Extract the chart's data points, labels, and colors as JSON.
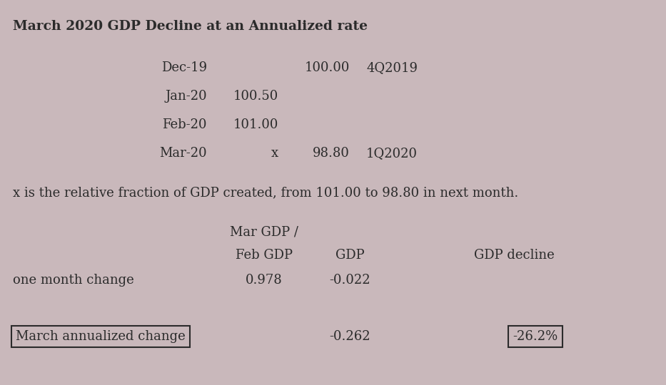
{
  "title": "March 2020 GDP Decline at an Annualized rate",
  "background_color": "#c9b8bb",
  "text_color": "#2b2b2b",
  "font_family": "DejaVu Serif",
  "title_fontsize": 13.5,
  "body_fontsize": 13,
  "rows": [
    {
      "label": "Dec-19",
      "value": "",
      "gdp": "100.00",
      "quarter": "4Q2019"
    },
    {
      "label": "Jan-20",
      "value": "100.50",
      "gdp": "",
      "quarter": ""
    },
    {
      "label": "Feb-20",
      "value": "101.00",
      "gdp": "",
      "quarter": ""
    },
    {
      "label": "Mar-20",
      "value": "x",
      "gdp": "98.80",
      "quarter": "1Q2020"
    }
  ],
  "note": "x is the relative fraction of GDP created, from 101.00 to 98.80 in next month.",
  "col_header1": "Mar GDP /",
  "col_header2": "Feb GDP",
  "col_header3": "GDP",
  "col_header4": "GDP decline",
  "row_label_change": "one month change",
  "val_mar_feb": "0.978",
  "val_gdp_change": "-0.022",
  "box_label": "March annualized change",
  "val_annualized": "-0.262",
  "val_decline": "-26.2%"
}
